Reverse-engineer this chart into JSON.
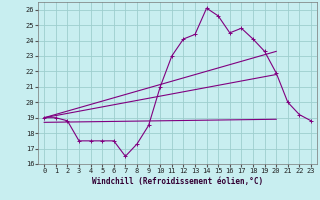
{
  "xlabel": "Windchill (Refroidissement éolien,°C)",
  "bg_color": "#c8eef0",
  "grid_color": "#9ecece",
  "line_color": "#800080",
  "xlim": [
    -0.5,
    23.5
  ],
  "ylim": [
    16,
    26.5
  ],
  "yticks": [
    16,
    17,
    18,
    19,
    20,
    21,
    22,
    23,
    24,
    25,
    26
  ],
  "xticks": [
    0,
    1,
    2,
    3,
    4,
    5,
    6,
    7,
    8,
    9,
    10,
    11,
    12,
    13,
    14,
    15,
    16,
    17,
    18,
    19,
    20,
    21,
    22,
    23
  ],
  "series1_x": [
    0,
    1,
    2,
    3,
    4,
    5,
    6,
    7,
    8,
    9,
    10,
    11,
    12,
    13,
    14,
    15,
    16,
    17,
    18,
    19,
    20,
    21,
    22,
    23
  ],
  "series1_y": [
    19.0,
    19.0,
    18.8,
    17.5,
    17.5,
    17.5,
    17.5,
    16.5,
    17.3,
    18.5,
    21.0,
    23.0,
    24.1,
    24.4,
    26.1,
    25.6,
    24.5,
    24.8,
    24.1,
    23.3,
    21.9,
    20.0,
    19.2,
    18.8
  ],
  "series2_x": [
    0,
    20
  ],
  "series2_y": [
    19.0,
    23.3
  ],
  "series3_x": [
    0,
    20
  ],
  "series3_y": [
    19.0,
    21.8
  ],
  "series4_x": [
    0,
    20
  ],
  "series4_y": [
    18.7,
    18.9
  ],
  "xlabel_fontsize": 5.5,
  "tick_fontsize": 5.0
}
